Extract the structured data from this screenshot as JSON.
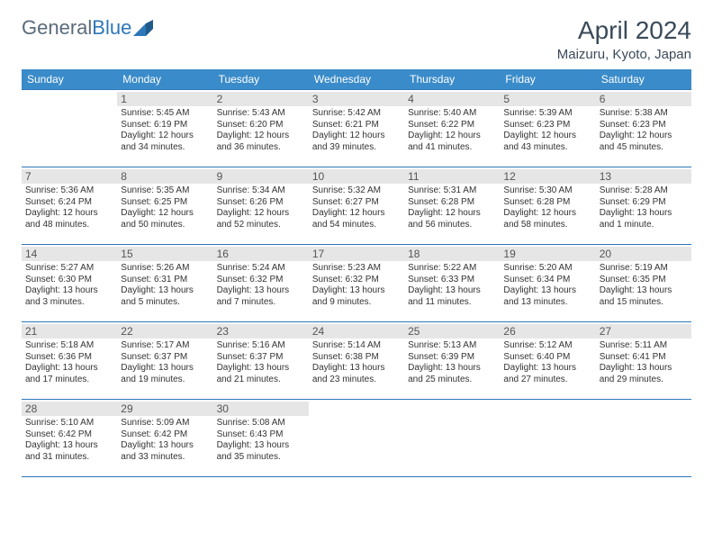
{
  "logo": {
    "word1": "General",
    "word2": "Blue"
  },
  "title": "April 2024",
  "location": "Maizuru, Kyoto, Japan",
  "colors": {
    "header_bg": "#3a8bc9",
    "header_fg": "#ffffff",
    "border": "#2e77b8",
    "daynum_bg": "#e6e6e6",
    "text": "#333333",
    "logo_gray": "#5a6b7a",
    "logo_blue": "#2e77b8",
    "page_bg": "#ffffff"
  },
  "typography": {
    "title_fontsize": 28,
    "location_fontsize": 15,
    "header_fontsize": 12,
    "daynum_fontsize": 12,
    "cell_fontsize": 10
  },
  "day_headers": [
    "Sunday",
    "Monday",
    "Tuesday",
    "Wednesday",
    "Thursday",
    "Friday",
    "Saturday"
  ],
  "weeks": [
    [
      {
        "day": "",
        "sunrise": "",
        "sunset": "",
        "daylight": ""
      },
      {
        "day": "1",
        "sunrise": "5:45 AM",
        "sunset": "6:19 PM",
        "daylight": "12 hours and 34 minutes."
      },
      {
        "day": "2",
        "sunrise": "5:43 AM",
        "sunset": "6:20 PM",
        "daylight": "12 hours and 36 minutes."
      },
      {
        "day": "3",
        "sunrise": "5:42 AM",
        "sunset": "6:21 PM",
        "daylight": "12 hours and 39 minutes."
      },
      {
        "day": "4",
        "sunrise": "5:40 AM",
        "sunset": "6:22 PM",
        "daylight": "12 hours and 41 minutes."
      },
      {
        "day": "5",
        "sunrise": "5:39 AM",
        "sunset": "6:23 PM",
        "daylight": "12 hours and 43 minutes."
      },
      {
        "day": "6",
        "sunrise": "5:38 AM",
        "sunset": "6:23 PM",
        "daylight": "12 hours and 45 minutes."
      }
    ],
    [
      {
        "day": "7",
        "sunrise": "5:36 AM",
        "sunset": "6:24 PM",
        "daylight": "12 hours and 48 minutes."
      },
      {
        "day": "8",
        "sunrise": "5:35 AM",
        "sunset": "6:25 PM",
        "daylight": "12 hours and 50 minutes."
      },
      {
        "day": "9",
        "sunrise": "5:34 AM",
        "sunset": "6:26 PM",
        "daylight": "12 hours and 52 minutes."
      },
      {
        "day": "10",
        "sunrise": "5:32 AM",
        "sunset": "6:27 PM",
        "daylight": "12 hours and 54 minutes."
      },
      {
        "day": "11",
        "sunrise": "5:31 AM",
        "sunset": "6:28 PM",
        "daylight": "12 hours and 56 minutes."
      },
      {
        "day": "12",
        "sunrise": "5:30 AM",
        "sunset": "6:28 PM",
        "daylight": "12 hours and 58 minutes."
      },
      {
        "day": "13",
        "sunrise": "5:28 AM",
        "sunset": "6:29 PM",
        "daylight": "13 hours and 1 minute."
      }
    ],
    [
      {
        "day": "14",
        "sunrise": "5:27 AM",
        "sunset": "6:30 PM",
        "daylight": "13 hours and 3 minutes."
      },
      {
        "day": "15",
        "sunrise": "5:26 AM",
        "sunset": "6:31 PM",
        "daylight": "13 hours and 5 minutes."
      },
      {
        "day": "16",
        "sunrise": "5:24 AM",
        "sunset": "6:32 PM",
        "daylight": "13 hours and 7 minutes."
      },
      {
        "day": "17",
        "sunrise": "5:23 AM",
        "sunset": "6:32 PM",
        "daylight": "13 hours and 9 minutes."
      },
      {
        "day": "18",
        "sunrise": "5:22 AM",
        "sunset": "6:33 PM",
        "daylight": "13 hours and 11 minutes."
      },
      {
        "day": "19",
        "sunrise": "5:20 AM",
        "sunset": "6:34 PM",
        "daylight": "13 hours and 13 minutes."
      },
      {
        "day": "20",
        "sunrise": "5:19 AM",
        "sunset": "6:35 PM",
        "daylight": "13 hours and 15 minutes."
      }
    ],
    [
      {
        "day": "21",
        "sunrise": "5:18 AM",
        "sunset": "6:36 PM",
        "daylight": "13 hours and 17 minutes."
      },
      {
        "day": "22",
        "sunrise": "5:17 AM",
        "sunset": "6:37 PM",
        "daylight": "13 hours and 19 minutes."
      },
      {
        "day": "23",
        "sunrise": "5:16 AM",
        "sunset": "6:37 PM",
        "daylight": "13 hours and 21 minutes."
      },
      {
        "day": "24",
        "sunrise": "5:14 AM",
        "sunset": "6:38 PM",
        "daylight": "13 hours and 23 minutes."
      },
      {
        "day": "25",
        "sunrise": "5:13 AM",
        "sunset": "6:39 PM",
        "daylight": "13 hours and 25 minutes."
      },
      {
        "day": "26",
        "sunrise": "5:12 AM",
        "sunset": "6:40 PM",
        "daylight": "13 hours and 27 minutes."
      },
      {
        "day": "27",
        "sunrise": "5:11 AM",
        "sunset": "6:41 PM",
        "daylight": "13 hours and 29 minutes."
      }
    ],
    [
      {
        "day": "28",
        "sunrise": "5:10 AM",
        "sunset": "6:42 PM",
        "daylight": "13 hours and 31 minutes."
      },
      {
        "day": "29",
        "sunrise": "5:09 AM",
        "sunset": "6:42 PM",
        "daylight": "13 hours and 33 minutes."
      },
      {
        "day": "30",
        "sunrise": "5:08 AM",
        "sunset": "6:43 PM",
        "daylight": "13 hours and 35 minutes."
      },
      {
        "day": "",
        "sunrise": "",
        "sunset": "",
        "daylight": ""
      },
      {
        "day": "",
        "sunrise": "",
        "sunset": "",
        "daylight": ""
      },
      {
        "day": "",
        "sunrise": "",
        "sunset": "",
        "daylight": ""
      },
      {
        "day": "",
        "sunrise": "",
        "sunset": "",
        "daylight": ""
      }
    ]
  ],
  "labels": {
    "sunrise": "Sunrise:",
    "sunset": "Sunset:",
    "daylight": "Daylight:"
  }
}
